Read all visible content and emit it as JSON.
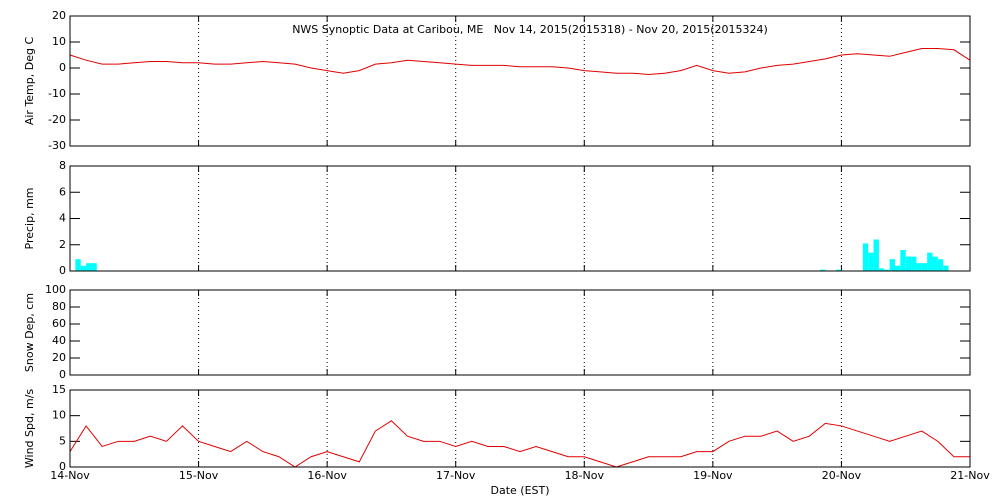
{
  "chart_data": [
    {
      "type": "line",
      "title": "NWS Synoptic Data at Caribou, ME   Nov 14, 2015(2015318) - Nov 20, 2015(2015324)",
      "ylabel": "Air Temp, Deg C",
      "xlim": [
        0,
        168
      ],
      "xticks": [
        0,
        24,
        48,
        72,
        96,
        120,
        144,
        168
      ],
      "ylim": [
        -30,
        20
      ],
      "yticks": [
        -30,
        -20,
        -10,
        0,
        10,
        20
      ],
      "grid": true,
      "color": "#e00000",
      "x": [
        0,
        3,
        6,
        9,
        12,
        15,
        18,
        21,
        24,
        27,
        30,
        33,
        36,
        39,
        42,
        45,
        48,
        51,
        54,
        57,
        60,
        63,
        66,
        69,
        72,
        75,
        78,
        81,
        84,
        87,
        90,
        93,
        96,
        99,
        102,
        105,
        108,
        111,
        114,
        117,
        120,
        123,
        126,
        129,
        132,
        135,
        138,
        141,
        144,
        147,
        150,
        153,
        156,
        159,
        162,
        165,
        168
      ],
      "values": [
        5,
        3,
        1.5,
        1.5,
        2,
        2.5,
        2.5,
        2,
        2,
        1.5,
        1.5,
        2,
        2.5,
        2,
        1.5,
        0,
        -1,
        -2,
        -1,
        1.5,
        2,
        3,
        2.5,
        2,
        1.5,
        1,
        1,
        1,
        0.5,
        0.5,
        0.5,
        0,
        -1,
        -1.5,
        -2,
        -2,
        -2.5,
        -2,
        -1,
        1,
        -1,
        -2,
        -1.5,
        0,
        1,
        1.5,
        2.5,
        3.5,
        5,
        5.5,
        5,
        4.5,
        6,
        7.5,
        7.5,
        7,
        3
      ]
    },
    {
      "type": "bar",
      "ylabel": "Precip, mm",
      "xlim": [
        0,
        168
      ],
      "xticks": [
        0,
        24,
        48,
        72,
        96,
        120,
        144,
        168
      ],
      "ylim": [
        0,
        8
      ],
      "yticks": [
        0,
        2,
        4,
        6,
        8
      ],
      "grid": true,
      "color": "#00ffff",
      "x": [
        1,
        2,
        3,
        4,
        140,
        143,
        148,
        149,
        150,
        151,
        152,
        153,
        154,
        155,
        156,
        157,
        158,
        159,
        160,
        161,
        162,
        163
      ],
      "values": [
        0.9,
        0.4,
        0.6,
        0.6,
        0.1,
        0.1,
        2.1,
        1.4,
        2.4,
        0.2,
        0.1,
        0.9,
        0.4,
        1.6,
        1.1,
        1.1,
        0.6,
        0.6,
        1.4,
        1.1,
        0.9,
        0.4
      ]
    },
    {
      "type": "line",
      "ylabel": "Snow Dep, cm",
      "xlim": [
        0,
        168
      ],
      "xticks": [
        0,
        24,
        48,
        72,
        96,
        120,
        144,
        168
      ],
      "ylim": [
        0,
        100
      ],
      "yticks": [
        0,
        20,
        40,
        60,
        80,
        100
      ],
      "grid": true,
      "color": "#e00000"
    },
    {
      "type": "line",
      "ylabel": "Wind Spd, m/s",
      "xlabel": "Date (EST)",
      "xlim": [
        0,
        168
      ],
      "xticks": [
        {
          "value": 0,
          "label": "14-Nov"
        },
        {
          "value": 24,
          "label": "15-Nov"
        },
        {
          "value": 48,
          "label": "16-Nov"
        },
        {
          "value": 72,
          "label": "17-Nov"
        },
        {
          "value": 96,
          "label": "18-Nov"
        },
        {
          "value": 120,
          "label": "19-Nov"
        },
        {
          "value": 144,
          "label": "20-Nov"
        },
        {
          "value": 168,
          "label": "21-Nov"
        }
      ],
      "ylim": [
        0,
        15
      ],
      "yticks": [
        0,
        5,
        10,
        15
      ],
      "grid": true,
      "color": "#e00000",
      "x": [
        0,
        3,
        6,
        9,
        12,
        15,
        18,
        21,
        24,
        27,
        30,
        33,
        36,
        39,
        42,
        45,
        48,
        51,
        54,
        57,
        60,
        63,
        66,
        69,
        72,
        75,
        78,
        81,
        84,
        87,
        90,
        93,
        96,
        99,
        102,
        105,
        108,
        111,
        114,
        117,
        120,
        123,
        126,
        129,
        132,
        135,
        138,
        141,
        144,
        147,
        150,
        153,
        156,
        159,
        162,
        165,
        168
      ],
      "values": [
        3,
        8,
        4,
        5,
        5,
        6,
        5,
        8,
        5,
        4,
        3,
        5,
        3,
        2,
        0,
        2,
        3,
        2,
        1,
        7,
        9,
        6,
        5,
        5,
        4,
        5,
        4,
        4,
        3,
        4,
        3,
        2,
        2,
        1,
        0,
        1,
        2,
        2,
        2,
        3,
        3,
        5,
        6,
        6,
        7,
        5,
        6,
        8.5,
        8,
        7,
        6,
        5,
        6,
        7,
        5,
        2,
        2
      ]
    }
  ]
}
